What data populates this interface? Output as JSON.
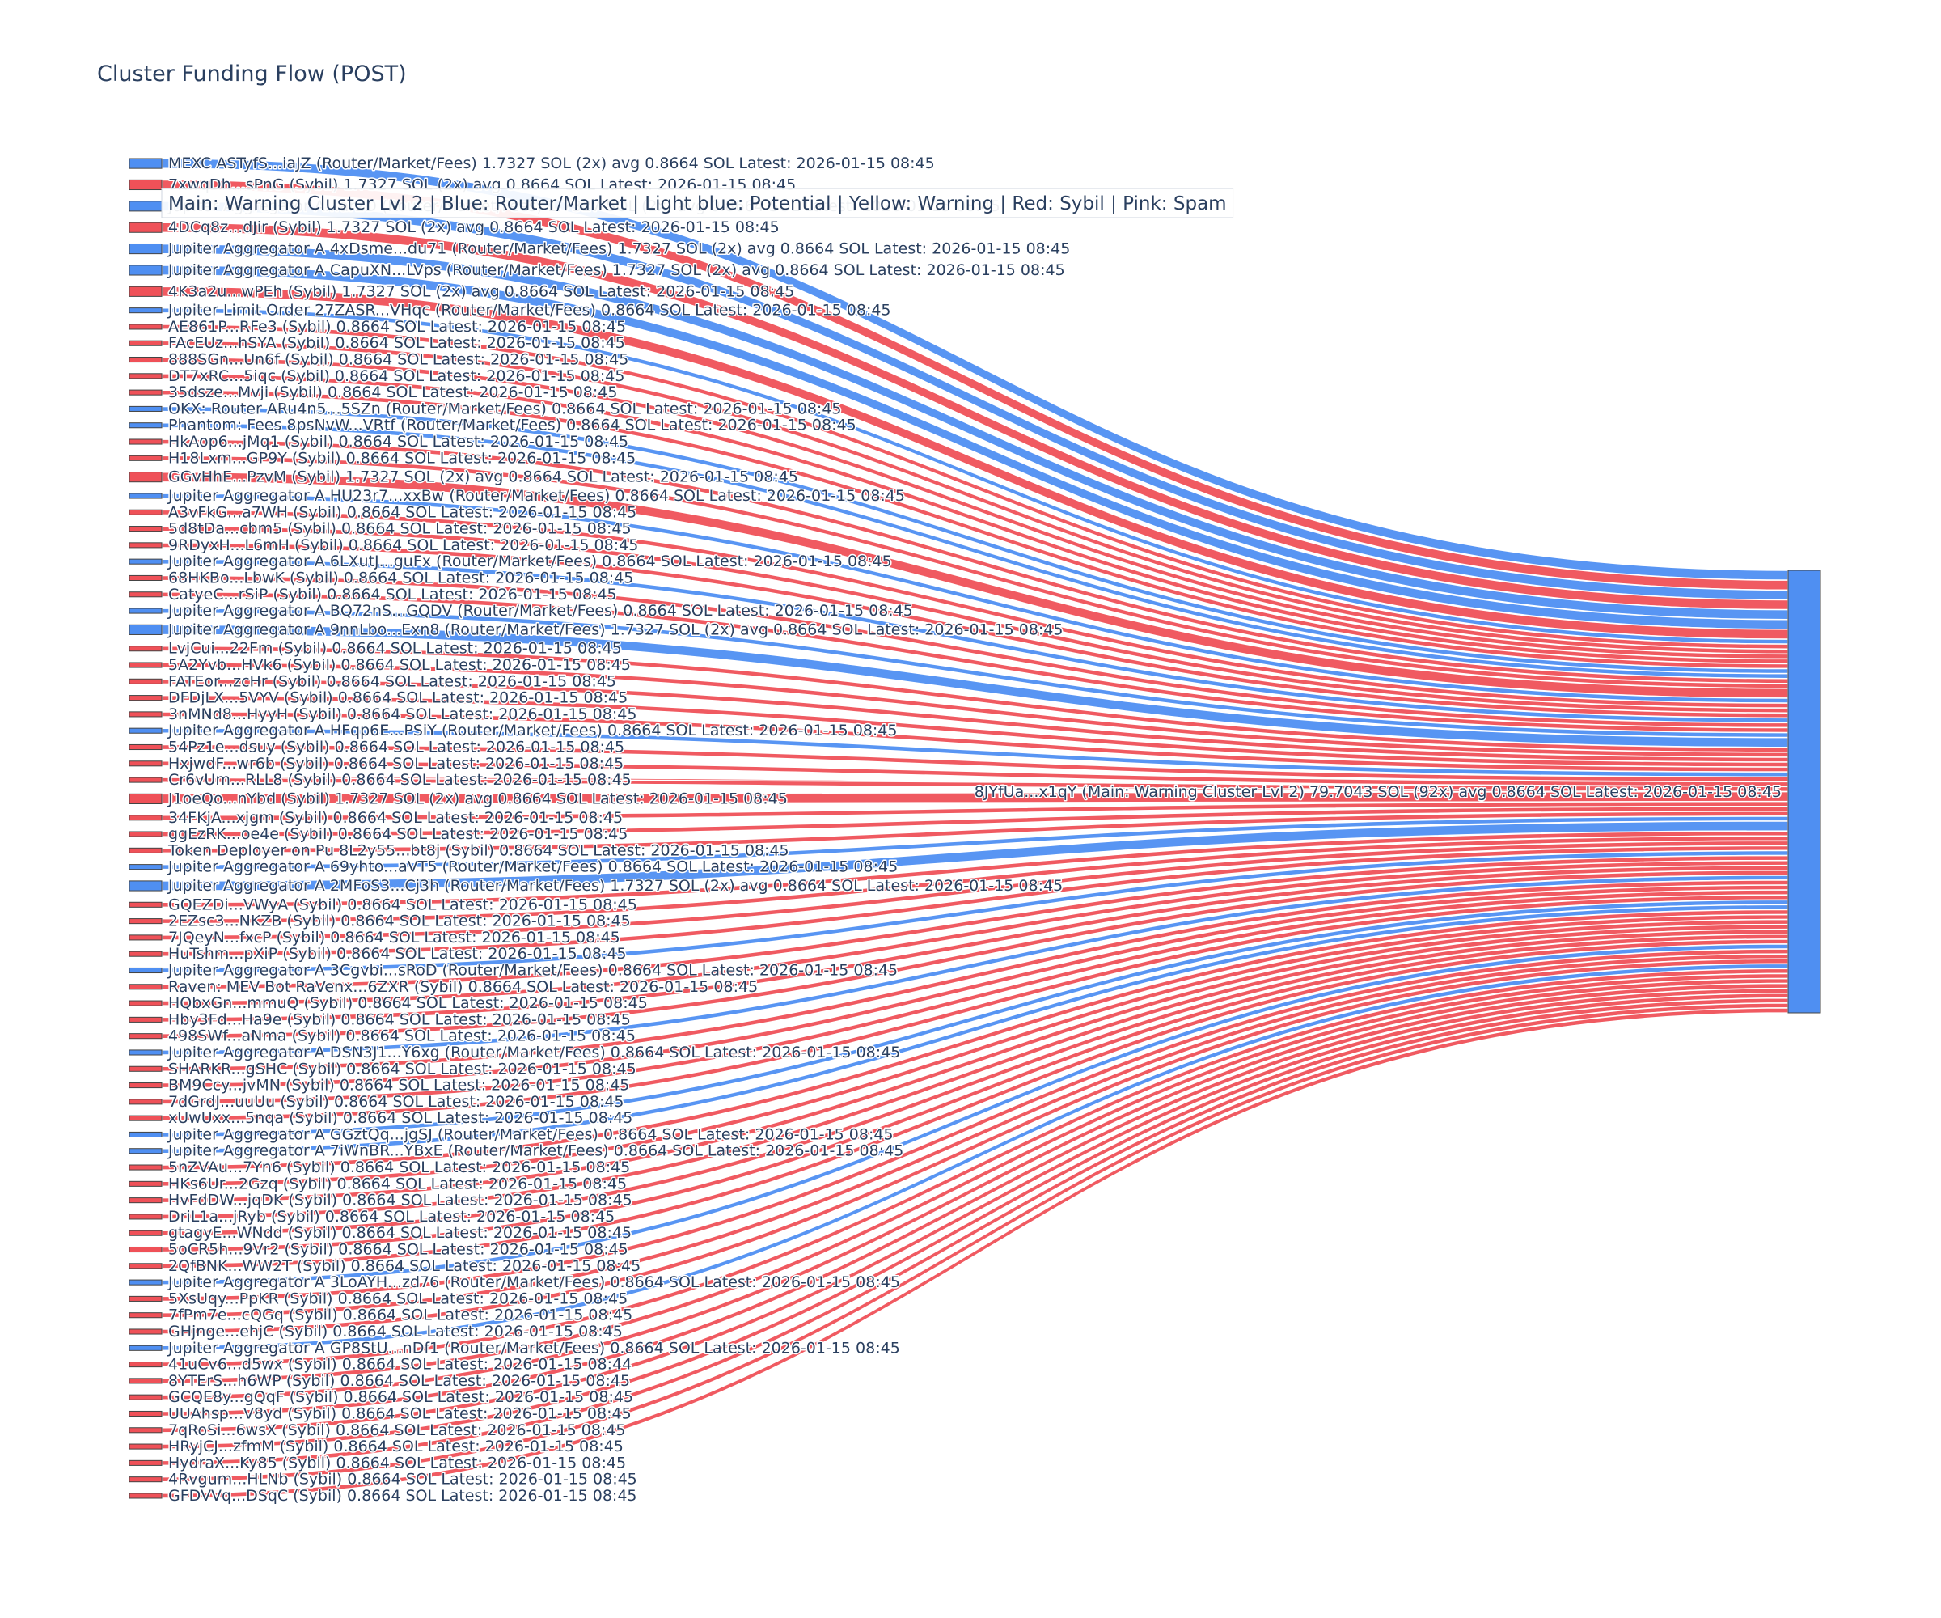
{
  "colors": {
    "router": "#4f8ff2",
    "sybil": "#ef5158",
    "node_stroke": "#444444",
    "text": "#2a3f5f"
  },
  "legend_text": "Main: Warning Cluster Lvl 2  |  Blue: Router/Market | Light blue: Potential | Yellow: Warning | Red: Sybil | Pink: Spam",
  "chart_data": {
    "type": "sankey",
    "title": "Cluster Funding Flow (POST)",
    "target": {
      "label": "8JYfUa...x1qY (Main: Warning Cluster Lvl 2) 79.7043 SOL (92x) avg 0.8664 SOL Latest: 2026-01-15 08:45",
      "value": 79.7043,
      "category": "main"
    },
    "sources": [
      {
        "label": "MEXC ASTyfS...iaJZ (Router/Market/Fees) 1.7327 SOL (2x) avg 0.8664 SOL Latest: 2026-01-15 08:45",
        "value": 1.7327,
        "category": "router"
      },
      {
        "label": "7xwqDh...sPnG (Sybil) 1.7327 SOL (2x) avg 0.8664 SOL Latest: 2026-01-15 08:45",
        "value": 1.7327,
        "category": "sybil"
      },
      {
        "label": "Jupiter Aggregator A...ar2D (Router/Market/Fees) 1.7327 SOL (2x) avg 0.8664 SOL Latest: 2026-01-15 08:45",
        "value": 1.7327,
        "category": "router"
      },
      {
        "label": "4DCq8z...dJir (Sybil) 1.7327 SOL (2x) avg 0.8664 SOL Latest: 2026-01-15 08:45",
        "value": 1.7327,
        "category": "sybil"
      },
      {
        "label": "Jupiter Aggregator A 4xDsme...du71 (Router/Market/Fees) 1.7327 SOL (2x) avg 0.8664 SOL Latest: 2026-01-15 08:45",
        "value": 1.7327,
        "category": "router"
      },
      {
        "label": "Jupiter Aggregator A CapuXN...LVps (Router/Market/Fees) 1.7327 SOL (2x) avg 0.8664 SOL Latest: 2026-01-15 08:45",
        "value": 1.7327,
        "category": "router"
      },
      {
        "label": "4K3a2u...wPEh (Sybil) 1.7327 SOL (2x) avg 0.8664 SOL Latest: 2026-01-15 08:45",
        "value": 1.7327,
        "category": "sybil"
      },
      {
        "label": "Jupiter Limit Order 27ZASR...VHqc (Router/Market/Fees) 0.8664 SOL Latest: 2026-01-15 08:45",
        "value": 0.8664,
        "category": "router"
      },
      {
        "label": "AE861P...RFe3 (Sybil) 0.8664 SOL Latest: 2026-01-15 08:45",
        "value": 0.8664,
        "category": "sybil"
      },
      {
        "label": "FAcEUz...hSYA (Sybil) 0.8664 SOL Latest: 2026-01-15 08:45",
        "value": 0.8664,
        "category": "sybil"
      },
      {
        "label": "888SGn...Un6f (Sybil) 0.8664 SOL Latest: 2026-01-15 08:45",
        "value": 0.8664,
        "category": "sybil"
      },
      {
        "label": "DT7xRC...5iqc (Sybil) 0.8664 SOL Latest: 2026-01-15 08:45",
        "value": 0.8664,
        "category": "sybil"
      },
      {
        "label": "35dsze...Mvji (Sybil) 0.8664 SOL Latest: 2026-01-15 08:45",
        "value": 0.8664,
        "category": "sybil"
      },
      {
        "label": "OKX: Router ARu4n5...5SZn (Router/Market/Fees) 0.8664 SOL Latest: 2026-01-15 08:45",
        "value": 0.8664,
        "category": "router"
      },
      {
        "label": "Phantom: Fees 8psNvW...VRtf (Router/Market/Fees) 0.8664 SOL Latest: 2026-01-15 08:45",
        "value": 0.8664,
        "category": "router"
      },
      {
        "label": "HkAop6...jMq1 (Sybil) 0.8664 SOL Latest: 2026-01-15 08:45",
        "value": 0.8664,
        "category": "sybil"
      },
      {
        "label": "H18Lxm...GP9Y (Sybil) 0.8664 SOL Latest: 2026-01-15 08:45",
        "value": 0.8664,
        "category": "sybil"
      },
      {
        "label": "GGvHhE...PzvM (Sybil) 1.7327 SOL (2x) avg 0.8664 SOL Latest: 2026-01-15 08:45",
        "value": 1.7327,
        "category": "sybil"
      },
      {
        "label": "Jupiter Aggregator A HU23r7...xxBw (Router/Market/Fees) 0.8664 SOL Latest: 2026-01-15 08:45",
        "value": 0.8664,
        "category": "router"
      },
      {
        "label": "A3vFkG...a7WH (Sybil) 0.8664 SOL Latest: 2026-01-15 08:45",
        "value": 0.8664,
        "category": "sybil"
      },
      {
        "label": "5d8tDa...cbm5 (Sybil) 0.8664 SOL Latest: 2026-01-15 08:45",
        "value": 0.8664,
        "category": "sybil"
      },
      {
        "label": "9RDyxH...L6mH (Sybil) 0.8664 SOL Latest: 2026-01-15 08:45",
        "value": 0.8664,
        "category": "sybil"
      },
      {
        "label": "Jupiter Aggregator A 6LXutJ...guFx (Router/Market/Fees) 0.8664 SOL Latest: 2026-01-15 08:45",
        "value": 0.8664,
        "category": "router"
      },
      {
        "label": "68HKBo...LbwK (Sybil) 0.8664 SOL Latest: 2026-01-15 08:45",
        "value": 0.8664,
        "category": "sybil"
      },
      {
        "label": "CatyeC...rSiP (Sybil) 0.8664 SOL Latest: 2026-01-15 08:45",
        "value": 0.8664,
        "category": "sybil"
      },
      {
        "label": "Jupiter Aggregator A BQ72nS...GQDV (Router/Market/Fees) 0.8664 SOL Latest: 2026-01-15 08:45",
        "value": 0.8664,
        "category": "router"
      },
      {
        "label": "Jupiter Aggregator A 9nnLbo...Exn8 (Router/Market/Fees) 1.7327 SOL (2x) avg 0.8664 SOL Latest: 2026-01-15 08:45",
        "value": 1.7327,
        "category": "router"
      },
      {
        "label": "LvjCui...22Fm (Sybil) 0.8664 SOL Latest: 2026-01-15 08:45",
        "value": 0.8664,
        "category": "sybil"
      },
      {
        "label": "5A2Yvb...HVk6 (Sybil) 0.8664 SOL Latest: 2026-01-15 08:45",
        "value": 0.8664,
        "category": "sybil"
      },
      {
        "label": "FATEor...zcHr (Sybil) 0.8664 SOL Latest: 2026-01-15 08:45",
        "value": 0.8664,
        "category": "sybil"
      },
      {
        "label": "DFDjLX...5VYV (Sybil) 0.8664 SOL Latest: 2026-01-15 08:45",
        "value": 0.8664,
        "category": "sybil"
      },
      {
        "label": "3nMNd8...HyyH (Sybil) 0.8664 SOL Latest: 2026-01-15 08:45",
        "value": 0.8664,
        "category": "sybil"
      },
      {
        "label": "Jupiter Aggregator A HFqp6E...PSiY (Router/Market/Fees) 0.8664 SOL Latest: 2026-01-15 08:45",
        "value": 0.8664,
        "category": "router"
      },
      {
        "label": "54Pz1e...dsuy (Sybil) 0.8664 SOL Latest: 2026-01-15 08:45",
        "value": 0.8664,
        "category": "sybil"
      },
      {
        "label": "HxjwdF...wr6b (Sybil) 0.8664 SOL Latest: 2026-01-15 08:45",
        "value": 0.8664,
        "category": "sybil"
      },
      {
        "label": "Cr6vUm...RLL8 (Sybil) 0.8664 SOL Latest: 2026-01-15 08:45",
        "value": 0.8664,
        "category": "sybil"
      },
      {
        "label": "J1oeQo...nYbd (Sybil) 1.7327 SOL (2x) avg 0.8664 SOL Latest: 2026-01-15 08:45",
        "value": 1.7327,
        "category": "sybil"
      },
      {
        "label": "34FKjA...xjgm (Sybil) 0.8664 SOL Latest: 2026-01-15 08:45",
        "value": 0.8664,
        "category": "sybil"
      },
      {
        "label": "ggEzRK...oe4e (Sybil) 0.8664 SOL Latest: 2026-01-15 08:45",
        "value": 0.8664,
        "category": "sybil"
      },
      {
        "label": "Token Deployer on Pu 8L2y55...bt8j (Sybil) 0.8664 SOL Latest: 2026-01-15 08:45",
        "value": 0.8664,
        "category": "sybil"
      },
      {
        "label": "Jupiter Aggregator A 69yhto...aVT5 (Router/Market/Fees) 0.8664 SOL Latest: 2026-01-15 08:45",
        "value": 0.8664,
        "category": "router"
      },
      {
        "label": "Jupiter Aggregator A 2MFoS3...Cj3h (Router/Market/Fees) 1.7327 SOL (2x) avg 0.8664 SOL Latest: 2026-01-15 08:45",
        "value": 1.7327,
        "category": "router"
      },
      {
        "label": "GQEZDi...VWyA (Sybil) 0.8664 SOL Latest: 2026-01-15 08:45",
        "value": 0.8664,
        "category": "sybil"
      },
      {
        "label": "2EZsc3...NKZB (Sybil) 0.8664 SOL Latest: 2026-01-15 08:45",
        "value": 0.8664,
        "category": "sybil"
      },
      {
        "label": "7JQeyN...fxcP (Sybil) 0.8664 SOL Latest: 2026-01-15 08:45",
        "value": 0.8664,
        "category": "sybil"
      },
      {
        "label": "HuTshm...pXiP (Sybil) 0.8664 SOL Latest: 2026-01-15 08:45",
        "value": 0.8664,
        "category": "sybil"
      },
      {
        "label": "Jupiter Aggregator A 3Cgvbi...sRoD (Router/Market/Fees) 0.8664 SOL Latest: 2026-01-15 08:45",
        "value": 0.8664,
        "category": "router"
      },
      {
        "label": "Raven: MEV Bot RaVenx...6ZXR (Sybil) 0.8664 SOL Latest: 2026-01-15 08:45",
        "value": 0.8664,
        "category": "sybil"
      },
      {
        "label": "HQbxGn...mmuQ (Sybil) 0.8664 SOL Latest: 2026-01-15 08:45",
        "value": 0.8664,
        "category": "sybil"
      },
      {
        "label": "Hby3Fd...Ha9e (Sybil) 0.8664 SOL Latest: 2026-01-15 08:45",
        "value": 0.8664,
        "category": "sybil"
      },
      {
        "label": "498SWf...aNma (Sybil) 0.8664 SOL Latest: 2026-01-15 08:45",
        "value": 0.8664,
        "category": "sybil"
      },
      {
        "label": "Jupiter Aggregator A DSN3J1...Y6xg (Router/Market/Fees) 0.8664 SOL Latest: 2026-01-15 08:45",
        "value": 0.8664,
        "category": "router"
      },
      {
        "label": "SHARKR...gSHC (Sybil) 0.8664 SOL Latest: 2026-01-15 08:45",
        "value": 0.8664,
        "category": "sybil"
      },
      {
        "label": "BM9Ccy...jvMN (Sybil) 0.8664 SOL Latest: 2026-01-15 08:45",
        "value": 0.8664,
        "category": "sybil"
      },
      {
        "label": "7dGrdJ...uuUu (Sybil) 0.8664 SOL Latest: 2026-01-15 08:45",
        "value": 0.8664,
        "category": "sybil"
      },
      {
        "label": "xUwUxx...5nqa (Sybil) 0.8664 SOL Latest: 2026-01-15 08:45",
        "value": 0.8664,
        "category": "sybil"
      },
      {
        "label": "Jupiter Aggregator A GGztQq...jgSJ (Router/Market/Fees) 0.8664 SOL Latest: 2026-01-15 08:45",
        "value": 0.8664,
        "category": "router"
      },
      {
        "label": "Jupiter Aggregator A 7iWnBR...YBxE (Router/Market/Fees) 0.8664 SOL Latest: 2026-01-15 08:45",
        "value": 0.8664,
        "category": "router"
      },
      {
        "label": "5nZVAu...7Yn6 (Sybil) 0.8664 SOL Latest: 2026-01-15 08:45",
        "value": 0.8664,
        "category": "sybil"
      },
      {
        "label": "HKs6Ur...2Gzq (Sybil) 0.8664 SOL Latest: 2026-01-15 08:45",
        "value": 0.8664,
        "category": "sybil"
      },
      {
        "label": "HvFdDW...jqDK (Sybil) 0.8664 SOL Latest: 2026-01-15 08:45",
        "value": 0.8664,
        "category": "sybil"
      },
      {
        "label": "DriL1a...jRyb (Sybil) 0.8664 SOL Latest: 2026-01-15 08:45",
        "value": 0.8664,
        "category": "sybil"
      },
      {
        "label": "gtagyE...WNdd (Sybil) 0.8664 SOL Latest: 2026-01-15 08:45",
        "value": 0.8664,
        "category": "sybil"
      },
      {
        "label": "5oCR5h...9Vr2 (Sybil) 0.8664 SOL Latest: 2026-01-15 08:45",
        "value": 0.8664,
        "category": "sybil"
      },
      {
        "label": "2QfBNK...WW2T (Sybil) 0.8664 SOL Latest: 2026-01-15 08:45",
        "value": 0.8664,
        "category": "sybil"
      },
      {
        "label": "Jupiter Aggregator A 3LoAYH...zd76 (Router/Market/Fees) 0.8664 SOL Latest: 2026-01-15 08:45",
        "value": 0.8664,
        "category": "router"
      },
      {
        "label": "5XsUqy...PpKR (Sybil) 0.8664 SOL Latest: 2026-01-15 08:45",
        "value": 0.8664,
        "category": "sybil"
      },
      {
        "label": "7fPm7e...cQGq (Sybil) 0.8664 SOL Latest: 2026-01-15 08:45",
        "value": 0.8664,
        "category": "sybil"
      },
      {
        "label": "GHjnge...ehjC (Sybil) 0.8664 SOL Latest: 2026-01-15 08:45",
        "value": 0.8664,
        "category": "sybil"
      },
      {
        "label": "Jupiter Aggregator A GP8StU...nDf1 (Router/Market/Fees) 0.8664 SOL Latest: 2026-01-15 08:45",
        "value": 0.8664,
        "category": "router"
      },
      {
        "label": "41uCv6...d5wx (Sybil) 0.8664 SOL Latest: 2026-01-15 08:44",
        "value": 0.8664,
        "category": "sybil"
      },
      {
        "label": "8YTErS...h6WP (Sybil) 0.8664 SOL Latest: 2026-01-15 08:45",
        "value": 0.8664,
        "category": "sybil"
      },
      {
        "label": "GCQE8y...gQqF (Sybil) 0.8664 SOL Latest: 2026-01-15 08:45",
        "value": 0.8664,
        "category": "sybil"
      },
      {
        "label": "UUAhsp...V8yd (Sybil) 0.8664 SOL Latest: 2026-01-15 08:45",
        "value": 0.8664,
        "category": "sybil"
      },
      {
        "label": "7qRoSi...6wsX (Sybil) 0.8664 SOL Latest: 2026-01-15 08:45",
        "value": 0.8664,
        "category": "sybil"
      },
      {
        "label": "HRyjCJ...zfmM (Sybil) 0.8664 SOL Latest: 2026-01-15 08:45",
        "value": 0.8664,
        "category": "sybil"
      },
      {
        "label": "HydraX...Ky85 (Sybil) 0.8664 SOL Latest: 2026-01-15 08:45",
        "value": 0.8664,
        "category": "sybil"
      },
      {
        "label": "4Rvgum...HLNb (Sybil) 0.8664 SOL Latest: 2026-01-15 08:45",
        "value": 0.8664,
        "category": "sybil"
      },
      {
        "label": "GFDVVq...DSqC (Sybil) 0.8664 SOL Latest: 2026-01-15 08:45",
        "value": 0.8664,
        "category": "sybil"
      }
    ]
  }
}
